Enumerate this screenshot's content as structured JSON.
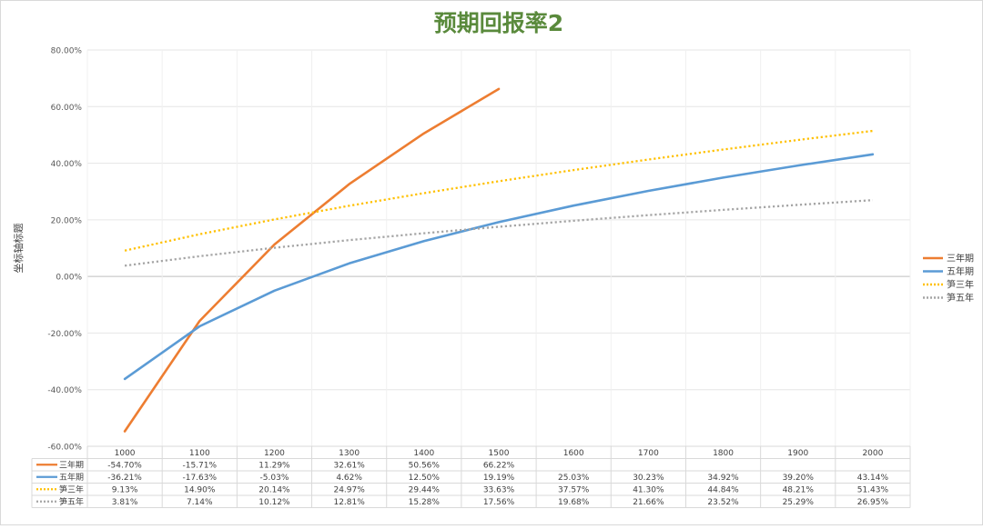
{
  "chart_data": {
    "type": "line",
    "title": "预期回报率2",
    "xlabel": "",
    "ylabel": "坐标轴标题",
    "categories": [
      "1000",
      "1100",
      "1200",
      "1300",
      "1400",
      "1500",
      "1600",
      "1700",
      "1800",
      "1900",
      "2000"
    ],
    "ylim": [
      -60,
      80
    ],
    "yticks": [
      "80.00%",
      "60.00%",
      "40.00%",
      "20.00%",
      "0.00%",
      "-20.00%",
      "-40.00%",
      "-60.00%"
    ],
    "ytick_values": [
      80,
      60,
      40,
      20,
      0,
      -20,
      -40,
      -60
    ],
    "grid": true,
    "legend_position": "right",
    "data_table": true,
    "series": [
      {
        "name": "三年期",
        "color": "#ED7D31",
        "style": "solid",
        "values": [
          -54.7,
          -15.71,
          11.29,
          32.61,
          50.56,
          66.22,
          null,
          null,
          null,
          null,
          null
        ],
        "labels": [
          "-54.70%",
          "-15.71%",
          "11.29%",
          "32.61%",
          "50.56%",
          "66.22%",
          "",
          "",
          "",
          "",
          ""
        ]
      },
      {
        "name": "五年期",
        "color": "#5B9BD5",
        "style": "solid",
        "values": [
          -36.21,
          -17.63,
          -5.03,
          4.62,
          12.5,
          19.19,
          25.03,
          30.23,
          34.92,
          39.2,
          43.14
        ],
        "labels": [
          "-36.21%",
          "-17.63%",
          "-5.03%",
          "4.62%",
          "12.50%",
          "19.19%",
          "25.03%",
          "30.23%",
          "34.92%",
          "39.20%",
          "43.14%"
        ]
      },
      {
        "name": "笋三年",
        "color": "#FFC000",
        "style": "dotted",
        "values": [
          9.13,
          14.9,
          20.14,
          24.97,
          29.44,
          33.63,
          37.57,
          41.3,
          44.84,
          48.21,
          51.43
        ],
        "labels": [
          "9.13%",
          "14.90%",
          "20.14%",
          "24.97%",
          "29.44%",
          "33.63%",
          "37.57%",
          "41.30%",
          "44.84%",
          "48.21%",
          "51.43%"
        ]
      },
      {
        "name": "笋五年",
        "color": "#A5A5A5",
        "style": "dotted",
        "values": [
          3.81,
          7.14,
          10.12,
          12.81,
          15.28,
          17.56,
          19.68,
          21.66,
          23.52,
          25.29,
          26.95
        ],
        "labels": [
          "3.81%",
          "7.14%",
          "10.12%",
          "12.81%",
          "15.28%",
          "17.56%",
          "19.68%",
          "21.66%",
          "23.52%",
          "25.29%",
          "26.95%"
        ]
      }
    ]
  }
}
